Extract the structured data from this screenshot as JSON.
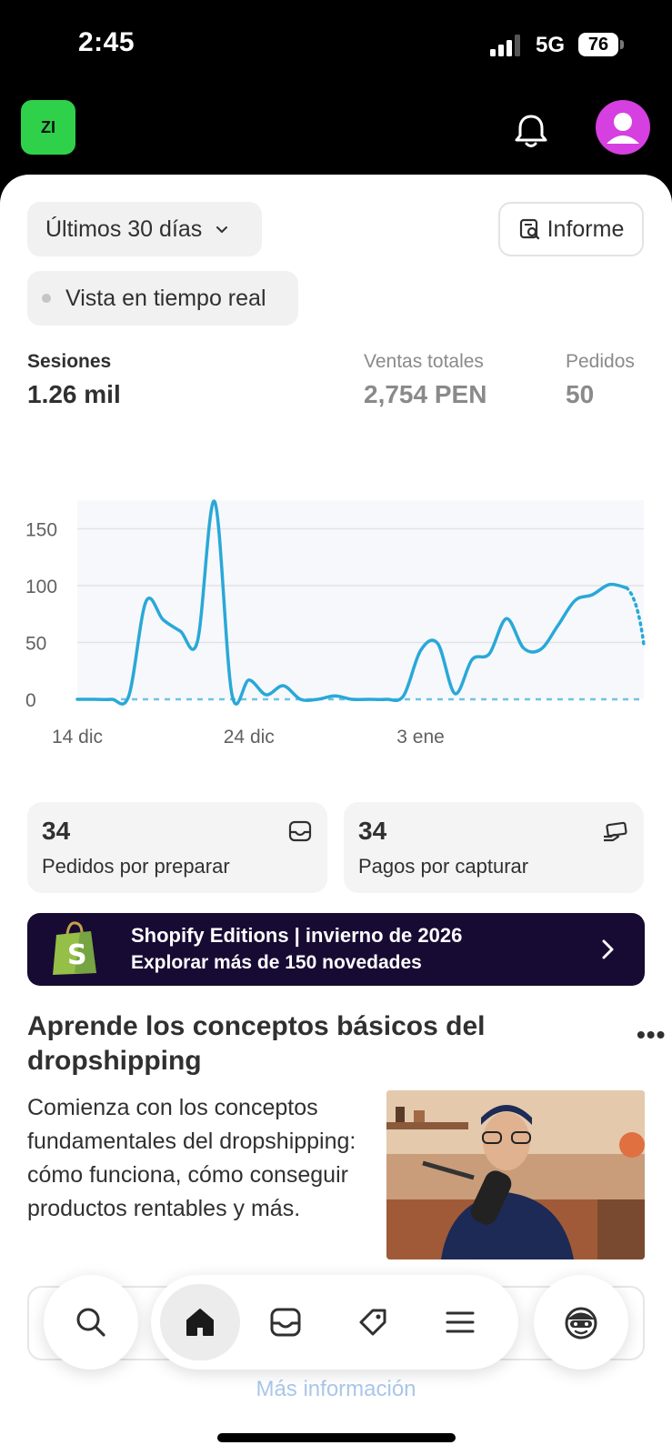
{
  "status_bar": {
    "time": "2:45",
    "network": "5G",
    "battery": "76"
  },
  "header": {
    "store_initials": "ZI"
  },
  "filters": {
    "range_label": "Últimos 30 días",
    "report_label": "Informe",
    "realtime_label": "Vista en tiempo real"
  },
  "metrics": [
    {
      "label": "Sesiones",
      "value": "1.26 mil"
    },
    {
      "label": "Ventas totales",
      "value": "2,754 PEN"
    },
    {
      "label": "Pedidos",
      "value": "50"
    }
  ],
  "chart_data": {
    "type": "line",
    "x_tick_labels": [
      "14 dic",
      "24 dic",
      "3 ene"
    ],
    "y_tick_labels": [
      "0",
      "50",
      "100",
      "150"
    ],
    "ylim": [
      0,
      175
    ],
    "grid": true,
    "series": [
      {
        "values": [
          0,
          0,
          0,
          3,
          86,
          70,
          60,
          51,
          174,
          5,
          17,
          4,
          12,
          0,
          0,
          3,
          0,
          0,
          0,
          3,
          43,
          49,
          5,
          35,
          40,
          71,
          45,
          44,
          65,
          87,
          92,
          101,
          98,
          48
        ],
        "dotted_last_segment": true
      },
      {
        "values": [
          0,
          0,
          0,
          0,
          0,
          0,
          0,
          0,
          0,
          0,
          0,
          0,
          0,
          0,
          0,
          0,
          0,
          0,
          0,
          0,
          0,
          0,
          0,
          0,
          0,
          0,
          0,
          0,
          0,
          0,
          0,
          0,
          0,
          0
        ],
        "style": "dashed"
      }
    ],
    "colors": {
      "primary": "#29a8d8",
      "comparison": "#6ec2e4"
    }
  },
  "cards": [
    {
      "value": "34",
      "label": "Pedidos por preparar",
      "icon": "inbox-icon"
    },
    {
      "value": "34",
      "label": "Pagos por capturar",
      "icon": "card-hand-icon"
    }
  ],
  "banner": {
    "title": "Shopify Editions | invierno de 2026",
    "subtitle": "Explorar más de 150 novedades"
  },
  "learn": {
    "title": "Aprende los conceptos básicos del dropshipping",
    "more": "•••",
    "body": "Comienza con los conceptos fundamentales del dropshipping: cómo funciona, cómo conseguir productos rentables y más."
  },
  "footer": {
    "more_info": "Más información"
  },
  "nav": {
    "items": [
      "search-icon",
      "home-icon",
      "orders-icon",
      "products-icon",
      "menu-icon",
      "sidekick-icon"
    ]
  }
}
